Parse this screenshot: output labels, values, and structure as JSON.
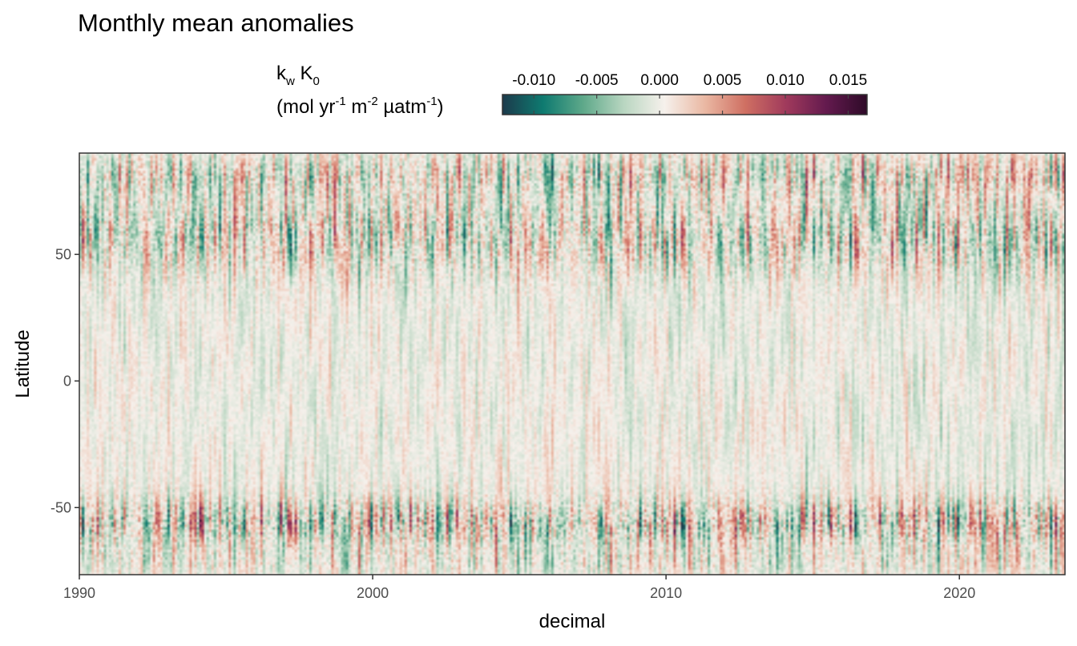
{
  "chart_data": {
    "type": "heatmap",
    "title": "Monthly mean anomalies",
    "legend": {
      "title_main": "k",
      "title_sub_w": "w",
      "title_main2": " K",
      "title_sub_0": "0",
      "unit_open": "(mol yr",
      "unit_exp1": "-1",
      "unit_mid1": " m",
      "unit_exp2": "-2",
      "unit_mid2": " µatm",
      "unit_exp3": "-1",
      "unit_close": ")",
      "placement": "top",
      "ticks": [
        -0.01,
        -0.005,
        0.0,
        0.005,
        0.01,
        0.015
      ],
      "tick_labels": [
        "-0.010",
        "-0.005",
        "0.000",
        "0.005",
        "0.010",
        "0.015"
      ],
      "range": [
        -0.0125,
        0.0165
      ],
      "colors": [
        "#1c3a4b",
        "#0e7a70",
        "#5fa98a",
        "#b9d6c1",
        "#f6f1ec",
        "#eab8a3",
        "#cf6f62",
        "#a03a5c",
        "#631a4e",
        "#2e0a28"
      ]
    },
    "xlabel": "decimal",
    "ylabel": "Latitude",
    "xlim": [
      1990,
      2023.6
    ],
    "ylim": [
      -76.5,
      90
    ],
    "x_ticks": [
      1990,
      2000,
      2010,
      2020
    ],
    "x_tick_labels": [
      "1990",
      "2000",
      "2010",
      "2020"
    ],
    "y_ticks": [
      -50,
      0,
      50
    ],
    "y_tick_labels": [
      "-50",
      "0",
      "50"
    ],
    "grid": false,
    "time_start": 1990,
    "months": 403,
    "lat_min": -76.5,
    "lat_max": 90,
    "lat_step": 1
  }
}
